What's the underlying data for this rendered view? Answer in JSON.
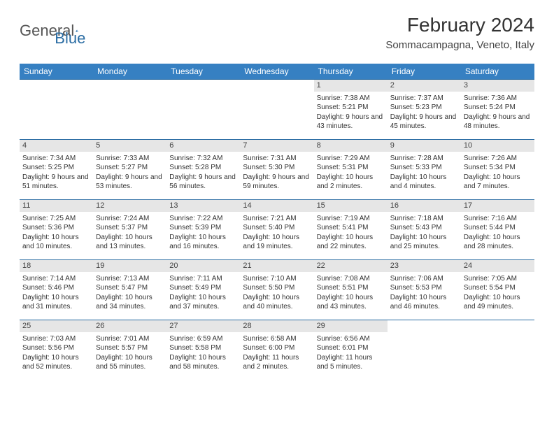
{
  "logo": {
    "text1": "General",
    "text2": "Blue"
  },
  "title": "February 2024",
  "location": "Sommacampagna, Veneto, Italy",
  "colors": {
    "header_bg": "#3680c2",
    "header_text": "#ffffff",
    "day_num_bg": "#e6e6e6",
    "border": "#2a6ca3",
    "logo_gray": "#555555",
    "logo_blue": "#2a6ca3"
  },
  "weekdays": [
    "Sunday",
    "Monday",
    "Tuesday",
    "Wednesday",
    "Thursday",
    "Friday",
    "Saturday"
  ],
  "weeks": [
    [
      null,
      null,
      null,
      null,
      {
        "n": "1",
        "sunrise": "7:38 AM",
        "sunset": "5:21 PM",
        "daylight": "9 hours and 43 minutes."
      },
      {
        "n": "2",
        "sunrise": "7:37 AM",
        "sunset": "5:23 PM",
        "daylight": "9 hours and 45 minutes."
      },
      {
        "n": "3",
        "sunrise": "7:36 AM",
        "sunset": "5:24 PM",
        "daylight": "9 hours and 48 minutes."
      }
    ],
    [
      {
        "n": "4",
        "sunrise": "7:34 AM",
        "sunset": "5:25 PM",
        "daylight": "9 hours and 51 minutes."
      },
      {
        "n": "5",
        "sunrise": "7:33 AM",
        "sunset": "5:27 PM",
        "daylight": "9 hours and 53 minutes."
      },
      {
        "n": "6",
        "sunrise": "7:32 AM",
        "sunset": "5:28 PM",
        "daylight": "9 hours and 56 minutes."
      },
      {
        "n": "7",
        "sunrise": "7:31 AM",
        "sunset": "5:30 PM",
        "daylight": "9 hours and 59 minutes."
      },
      {
        "n": "8",
        "sunrise": "7:29 AM",
        "sunset": "5:31 PM",
        "daylight": "10 hours and 2 minutes."
      },
      {
        "n": "9",
        "sunrise": "7:28 AM",
        "sunset": "5:33 PM",
        "daylight": "10 hours and 4 minutes."
      },
      {
        "n": "10",
        "sunrise": "7:26 AM",
        "sunset": "5:34 PM",
        "daylight": "10 hours and 7 minutes."
      }
    ],
    [
      {
        "n": "11",
        "sunrise": "7:25 AM",
        "sunset": "5:36 PM",
        "daylight": "10 hours and 10 minutes."
      },
      {
        "n": "12",
        "sunrise": "7:24 AM",
        "sunset": "5:37 PM",
        "daylight": "10 hours and 13 minutes."
      },
      {
        "n": "13",
        "sunrise": "7:22 AM",
        "sunset": "5:39 PM",
        "daylight": "10 hours and 16 minutes."
      },
      {
        "n": "14",
        "sunrise": "7:21 AM",
        "sunset": "5:40 PM",
        "daylight": "10 hours and 19 minutes."
      },
      {
        "n": "15",
        "sunrise": "7:19 AM",
        "sunset": "5:41 PM",
        "daylight": "10 hours and 22 minutes."
      },
      {
        "n": "16",
        "sunrise": "7:18 AM",
        "sunset": "5:43 PM",
        "daylight": "10 hours and 25 minutes."
      },
      {
        "n": "17",
        "sunrise": "7:16 AM",
        "sunset": "5:44 PM",
        "daylight": "10 hours and 28 minutes."
      }
    ],
    [
      {
        "n": "18",
        "sunrise": "7:14 AM",
        "sunset": "5:46 PM",
        "daylight": "10 hours and 31 minutes."
      },
      {
        "n": "19",
        "sunrise": "7:13 AM",
        "sunset": "5:47 PM",
        "daylight": "10 hours and 34 minutes."
      },
      {
        "n": "20",
        "sunrise": "7:11 AM",
        "sunset": "5:49 PM",
        "daylight": "10 hours and 37 minutes."
      },
      {
        "n": "21",
        "sunrise": "7:10 AM",
        "sunset": "5:50 PM",
        "daylight": "10 hours and 40 minutes."
      },
      {
        "n": "22",
        "sunrise": "7:08 AM",
        "sunset": "5:51 PM",
        "daylight": "10 hours and 43 minutes."
      },
      {
        "n": "23",
        "sunrise": "7:06 AM",
        "sunset": "5:53 PM",
        "daylight": "10 hours and 46 minutes."
      },
      {
        "n": "24",
        "sunrise": "7:05 AM",
        "sunset": "5:54 PM",
        "daylight": "10 hours and 49 minutes."
      }
    ],
    [
      {
        "n": "25",
        "sunrise": "7:03 AM",
        "sunset": "5:56 PM",
        "daylight": "10 hours and 52 minutes."
      },
      {
        "n": "26",
        "sunrise": "7:01 AM",
        "sunset": "5:57 PM",
        "daylight": "10 hours and 55 minutes."
      },
      {
        "n": "27",
        "sunrise": "6:59 AM",
        "sunset": "5:58 PM",
        "daylight": "10 hours and 58 minutes."
      },
      {
        "n": "28",
        "sunrise": "6:58 AM",
        "sunset": "6:00 PM",
        "daylight": "11 hours and 2 minutes."
      },
      {
        "n": "29",
        "sunrise": "6:56 AM",
        "sunset": "6:01 PM",
        "daylight": "11 hours and 5 minutes."
      },
      null,
      null
    ]
  ],
  "labels": {
    "sunrise": "Sunrise:",
    "sunset": "Sunset:",
    "daylight": "Daylight:"
  }
}
